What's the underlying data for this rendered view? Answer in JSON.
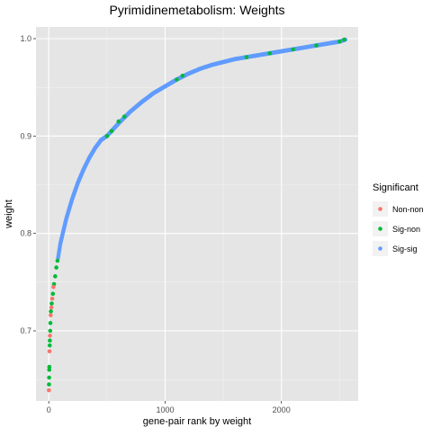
{
  "chart_data": {
    "type": "scatter",
    "title": "Pyrimidinemetabolism: Weights",
    "xlabel": "gene-pair rank by weight",
    "ylabel": "weight",
    "xlim": [
      -110,
      2660
    ],
    "ylim": [
      0.628,
      1.012
    ],
    "x_ticks": [
      0,
      1000,
      2000
    ],
    "x_tick_labels": [
      "0",
      "1000",
      "2000"
    ],
    "y_ticks": [
      0.7,
      0.8,
      0.9,
      1.0
    ],
    "y_tick_labels": [
      "0.7",
      "0.8",
      "0.9",
      "1.0"
    ],
    "grid": true,
    "panel_background": "#e5e5e5",
    "legend": {
      "title": "Significant",
      "position": "right",
      "entries": [
        {
          "label": "Non-non",
          "color": "#f8766d"
        },
        {
          "label": "Sig-non",
          "color": "#00ba38"
        },
        {
          "label": "Sig-sig",
          "color": "#619cff"
        }
      ]
    },
    "series": [
      {
        "name": "Non-non",
        "color": "#f8766d",
        "points": [
          [
            1,
            0.639
          ],
          [
            6,
            0.679
          ],
          [
            10,
            0.695
          ],
          [
            16,
            0.716
          ],
          [
            22,
            0.724
          ],
          [
            30,
            0.733
          ],
          [
            40,
            0.745
          ]
        ]
      },
      {
        "name": "Sig-non",
        "color": "#00ba38",
        "points": [
          [
            2,
            0.645
          ],
          [
            3,
            0.652
          ],
          [
            4,
            0.66
          ],
          [
            5,
            0.663
          ],
          [
            8,
            0.685
          ],
          [
            9,
            0.69
          ],
          [
            12,
            0.7
          ],
          [
            14,
            0.708
          ],
          [
            18,
            0.72
          ],
          [
            25,
            0.728
          ],
          [
            35,
            0.738
          ],
          [
            45,
            0.748
          ],
          [
            55,
            0.756
          ],
          [
            65,
            0.765
          ],
          [
            75,
            0.772
          ],
          [
            500,
            0.9
          ],
          [
            540,
            0.905
          ],
          [
            600,
            0.915
          ],
          [
            650,
            0.92
          ],
          [
            1100,
            0.958
          ],
          [
            1150,
            0.962
          ],
          [
            1700,
            0.981
          ],
          [
            1900,
            0.985
          ],
          [
            2100,
            0.989
          ],
          [
            2300,
            0.993
          ],
          [
            2500,
            0.997
          ],
          [
            2540,
            0.999
          ]
        ]
      },
      {
        "name": "Sig-sig",
        "color": "#619cff",
        "curve": {
          "x": [
            80,
            100,
            150,
            200,
            250,
            300,
            350,
            400,
            450,
            500,
            600,
            700,
            800,
            900,
            1000,
            1100,
            1200,
            1300,
            1400,
            1500,
            1600,
            1700,
            1800,
            1900,
            2000,
            2100,
            2200,
            2300,
            2400,
            2500,
            2550
          ],
          "y": [
            0.775,
            0.79,
            0.815,
            0.835,
            0.852,
            0.866,
            0.878,
            0.888,
            0.896,
            0.9,
            0.913,
            0.925,
            0.935,
            0.944,
            0.951,
            0.958,
            0.964,
            0.969,
            0.973,
            0.976,
            0.979,
            0.981,
            0.983,
            0.985,
            0.987,
            0.989,
            0.991,
            0.993,
            0.995,
            0.997,
            0.999
          ]
        }
      }
    ]
  }
}
